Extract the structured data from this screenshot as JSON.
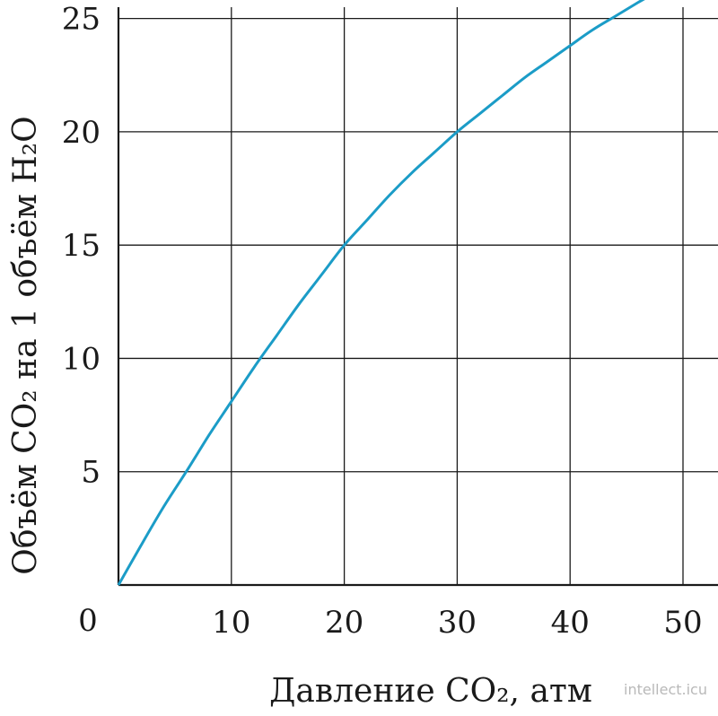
{
  "chart_data": {
    "type": "line",
    "xlabel": "Давление CO₂, атм",
    "ylabel": "Объём CO₂ на 1 объём H₂O",
    "xlim": [
      0,
      52
    ],
    "ylim": [
      0,
      25.5
    ],
    "x_ticks": [
      10,
      20,
      30,
      40,
      50
    ],
    "y_ticks": [
      5,
      10,
      15,
      20,
      25
    ],
    "origin_label": "0",
    "grid": true,
    "colors": {
      "curve": "#1b9cc7",
      "axes": "#1a1a1a"
    },
    "series": [
      {
        "x": [
          0,
          2,
          4,
          6,
          8,
          10,
          12,
          14,
          16,
          18,
          20,
          22,
          24,
          26,
          28,
          30,
          32,
          34,
          36,
          38,
          40,
          42,
          44,
          46,
          46.7
        ],
        "y": [
          0,
          1.75,
          3.45,
          5.0,
          6.6,
          8.1,
          9.6,
          11.0,
          12.4,
          13.7,
          15.0,
          16.1,
          17.2,
          18.2,
          19.1,
          20.0,
          20.8,
          21.6,
          22.4,
          23.1,
          23.8,
          24.5,
          25.1,
          25.7,
          25.9
        ]
      }
    ]
  },
  "watermark": "intellect.icu"
}
